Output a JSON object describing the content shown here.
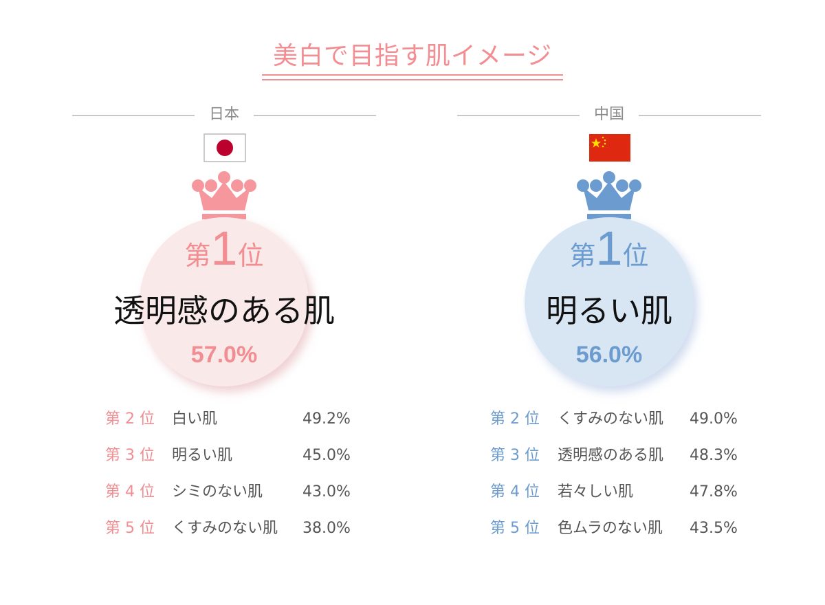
{
  "title": "美白で目指す肌イメージ",
  "colors": {
    "japan_accent": "#f28d92",
    "china_accent": "#6b9bcf",
    "japan_circle": "#fae9e9",
    "china_circle": "#d8e6f4"
  },
  "japan": {
    "country": "日本",
    "flag_icon": "japan-flag-icon",
    "top": {
      "rank_prefix": "第",
      "rank": "1",
      "rank_suffix": "位",
      "item": "透明感のある肌",
      "percent": "57.0%"
    },
    "ranks": [
      {
        "rank": "第 2 位",
        "item": "白い肌",
        "percent": "49.2%"
      },
      {
        "rank": "第 3 位",
        "item": "明るい肌",
        "percent": "45.0%"
      },
      {
        "rank": "第 4 位",
        "item": "シミのない肌",
        "percent": "43.0%"
      },
      {
        "rank": "第 5 位",
        "item": "くすみのない肌",
        "percent": "38.0%"
      }
    ]
  },
  "china": {
    "country": "中国",
    "flag_icon": "china-flag-icon",
    "top": {
      "rank_prefix": "第",
      "rank": "1",
      "rank_suffix": "位",
      "item": "明るい肌",
      "percent": "56.0%"
    },
    "ranks": [
      {
        "rank": "第 2 位",
        "item": "くすみのない肌",
        "percent": "49.0%"
      },
      {
        "rank": "第 3 位",
        "item": "透明感のある肌",
        "percent": "48.3%"
      },
      {
        "rank": "第 4 位",
        "item": "若々しい肌",
        "percent": "47.8%"
      },
      {
        "rank": "第 5 位",
        "item": "色ムラのない肌",
        "percent": "43.5%"
      }
    ]
  }
}
